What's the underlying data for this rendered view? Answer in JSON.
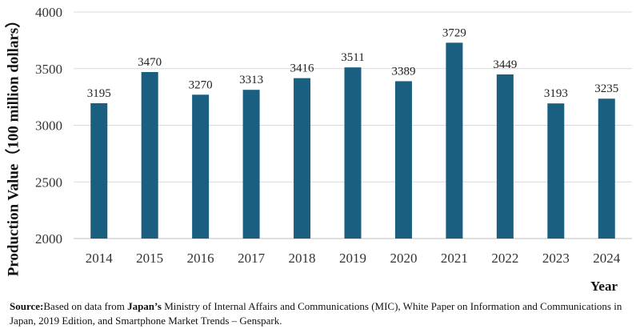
{
  "chart_data": {
    "type": "bar",
    "categories": [
      "2014",
      "2015",
      "2016",
      "2017",
      "2018",
      "2019",
      "2020",
      "2021",
      "2022",
      "2023",
      "2024"
    ],
    "values": [
      3195,
      3470,
      3270,
      3313,
      3416,
      3511,
      3389,
      3729,
      3449,
      3193,
      3235
    ],
    "ylabel": "Production Value（100 million dollars）",
    "xlabel": "Year",
    "ylim": [
      2000,
      4000
    ],
    "yticks": [
      2000,
      2500,
      3000,
      3500,
      4000
    ],
    "grid": true,
    "legend": "none",
    "bar_color": "#1a5f80",
    "grid_color": "#d9d9d9"
  },
  "source": {
    "label": "Source:",
    "text_before": "Based on data from ",
    "emphasis": "Japan’s",
    "text_after": " Ministry of Internal Affairs and Communications (MIC), White Paper on Information and Communications in Japan, 2019 Edition, and  Smartphone Market Trends  – Genspark."
  }
}
